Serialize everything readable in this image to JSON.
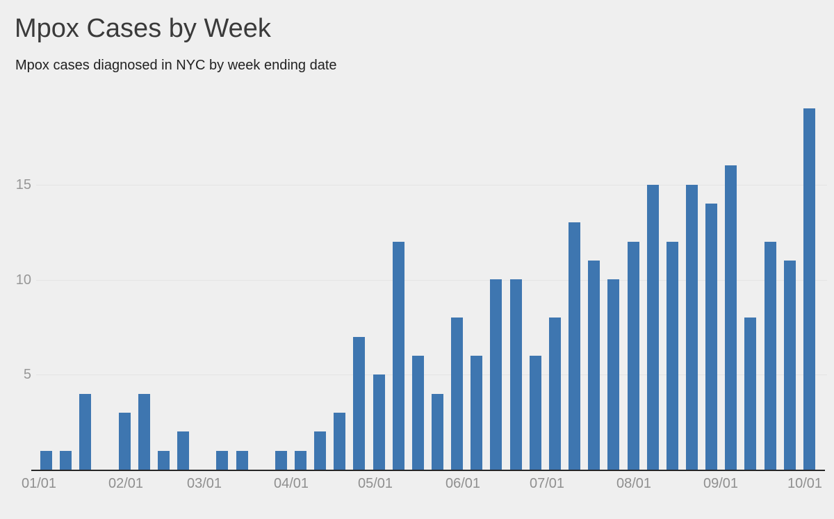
{
  "header": {
    "title": "Mpox Cases by Week",
    "subtitle": "Mpox cases diagnosed in NYC by week ending date"
  },
  "chart_data": {
    "type": "bar",
    "title": "Mpox Cases by Week",
    "subtitle": "Mpox cases diagnosed in NYC by week ending date",
    "x_interval": "weekly",
    "x_tick_labels": [
      "01/01",
      "02/01",
      "03/01",
      "04/01",
      "05/01",
      "06/01",
      "07/01",
      "08/01",
      "09/01",
      "10/01"
    ],
    "values": [
      1,
      1,
      4,
      0,
      3,
      4,
      1,
      2,
      0,
      1,
      1,
      0,
      1,
      1,
      2,
      3,
      7,
      5,
      12,
      6,
      4,
      8,
      6,
      10,
      10,
      6,
      8,
      13,
      11,
      10,
      12,
      15,
      12,
      15,
      14,
      16,
      8,
      12,
      11,
      19
    ],
    "y_ticks": [
      5,
      10,
      15
    ],
    "ylim": [
      0,
      19
    ],
    "grid": "horizontal",
    "legend": "none",
    "colors": {
      "bar": "#3e76b0",
      "background": "#efefef",
      "gridline": "#e4e4e4",
      "axis_line": "#262626",
      "axis_labels": "#8f8f8f",
      "title": "#3a3a3a",
      "subtitle": "#212121"
    }
  }
}
